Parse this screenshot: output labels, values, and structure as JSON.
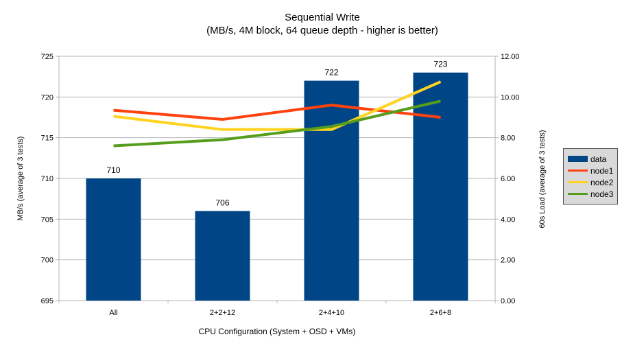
{
  "chart_data": {
    "type": "bar",
    "title": "Sequential Write",
    "subtitle": "(MB/s, 4M block, 64 queue depth - higher is better)",
    "categories": [
      "All",
      "2+2+12",
      "2+4+10",
      "2+6+8"
    ],
    "bar_series": {
      "name": "data",
      "color": "#004586",
      "axis": "left",
      "values": [
        710,
        706,
        722,
        723
      ],
      "data_labels": [
        "710",
        "706",
        "722",
        "723"
      ]
    },
    "line_series": [
      {
        "name": "node1",
        "color": "#ff420e",
        "axis": "right",
        "values": [
          9.35,
          8.9,
          9.6,
          9.0
        ]
      },
      {
        "name": "node2",
        "color": "#ffd320",
        "axis": "right",
        "values": [
          9.05,
          8.4,
          8.4,
          10.75
        ]
      },
      {
        "name": "node3",
        "color": "#579d1c",
        "axis": "right",
        "values": [
          7.6,
          7.9,
          8.55,
          9.8
        ]
      }
    ],
    "left_axis": {
      "title": "MB/s (average of 3 tests)",
      "min": 695,
      "max": 725,
      "step": 5,
      "tick_labels": [
        "695",
        "700",
        "705",
        "710",
        "715",
        "720",
        "725"
      ]
    },
    "right_axis": {
      "title": "60s Load (average of 3 tests)",
      "min": 0,
      "max": 12,
      "step": 2,
      "tick_labels": [
        "0.00",
        "2.00",
        "4.00",
        "6.00",
        "8.00",
        "10.00",
        "12.00"
      ]
    },
    "x_axis": {
      "title": "CPU Configuration (System + OSD + VMs)"
    },
    "grid": "horizontal",
    "legend_position": "right"
  },
  "legend": {
    "entries": [
      {
        "label": "data",
        "color": "#004586",
        "swatch": "rect"
      },
      {
        "label": "node1",
        "color": "#ff420e",
        "swatch": "line"
      },
      {
        "label": "node2",
        "color": "#ffd320",
        "swatch": "line"
      },
      {
        "label": "node3",
        "color": "#579d1c",
        "swatch": "line"
      }
    ]
  },
  "colors": {
    "background": "#ffffff",
    "gridline": "#b3b3b3",
    "axis": "#b3b3b3",
    "text": "#000000",
    "legend_bg": "#d9d9d9",
    "legend_border": "#4d4d4d"
  }
}
